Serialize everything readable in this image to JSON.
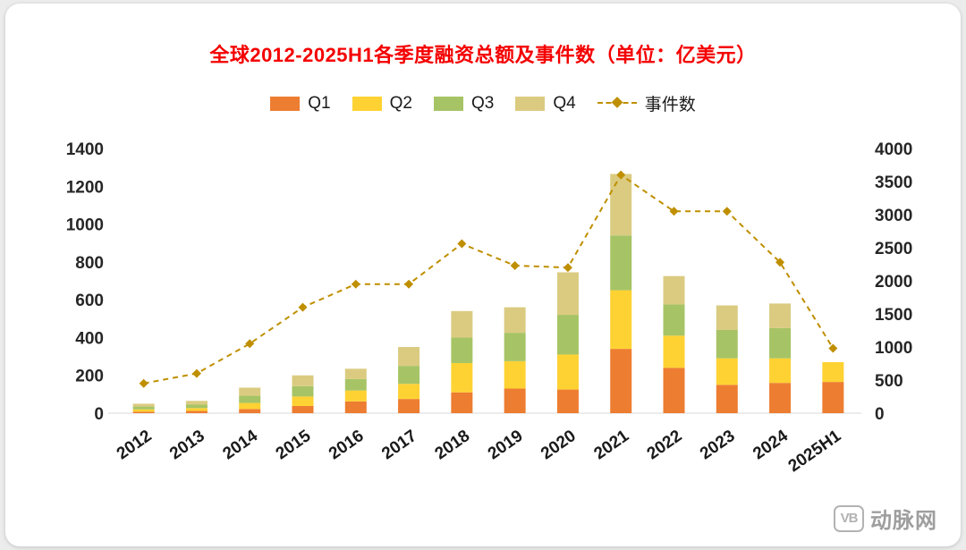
{
  "chart": {
    "title": "全球2012-2025H1各季度融资总额及事件数（单位：亿美元）"
  },
  "watermark": {
    "logo": "VB",
    "text": "动脉网"
  },
  "chart_data": {
    "type": "bar",
    "subtype": "stacked-bars-with-line",
    "title": "全球2012-2025H1各季度融资总额及事件数（单位：亿美元）",
    "categories": [
      "2012",
      "2013",
      "2014",
      "2015",
      "2016",
      "2017",
      "2018",
      "2019",
      "2020",
      "2021",
      "2022",
      "2023",
      "2024",
      "2025H1"
    ],
    "series": [
      {
        "name": "Q1",
        "color": "#ED7D31",
        "values": [
          8,
          12,
          22,
          38,
          62,
          75,
          110,
          130,
          125,
          340,
          240,
          150,
          160,
          165
        ]
      },
      {
        "name": "Q2",
        "color": "#FFD233",
        "values": [
          12,
          15,
          32,
          50,
          58,
          80,
          155,
          145,
          185,
          310,
          170,
          140,
          130,
          105
        ]
      },
      {
        "name": "Q3",
        "color": "#A6C465",
        "values": [
          15,
          18,
          38,
          55,
          60,
          95,
          135,
          150,
          210,
          290,
          165,
          150,
          160,
          0
        ]
      },
      {
        "name": "Q4",
        "color": "#DBCB81",
        "values": [
          15,
          20,
          43,
          57,
          55,
          100,
          140,
          135,
          225,
          325,
          150,
          130,
          130,
          0
        ]
      }
    ],
    "line": {
      "name": "事件数",
      "color": "#BF8F00",
      "axis": "right",
      "style": "dashed",
      "marker": "diamond",
      "values": [
        450,
        600,
        1050,
        1600,
        1950,
        1950,
        2560,
        2230,
        2200,
        3600,
        3050,
        3050,
        2280,
        980
      ]
    },
    "left_axis": {
      "min": 0,
      "max": 1400,
      "step": 200
    },
    "right_axis": {
      "min": 0,
      "max": 4000,
      "step": 500
    },
    "legend_position": "top",
    "grid": false
  }
}
